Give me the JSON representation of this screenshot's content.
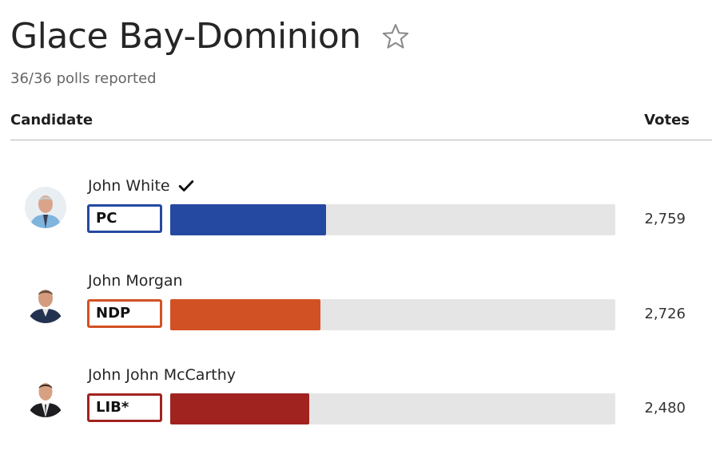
{
  "riding": {
    "title": "Glace Bay-Dominion",
    "polls_reported": "36/36 polls reported"
  },
  "table": {
    "candidate_header": "Candidate",
    "votes_header": "Votes"
  },
  "candidates": [
    {
      "name": "John White",
      "elected": true,
      "party": "PC",
      "votes": "2,759",
      "bar_fraction": 0.35,
      "color": "#2548a1"
    },
    {
      "name": "John Morgan",
      "elected": false,
      "party": "NDP",
      "votes": "2,726",
      "bar_fraction": 0.338,
      "color": "#d25124"
    },
    {
      "name": "John John McCarthy",
      "elected": false,
      "party": "LIB*",
      "votes": "2,480",
      "bar_fraction": 0.312,
      "color": "#a1231f"
    }
  ],
  "icons": {
    "favorite": "star-outline-icon",
    "elected": "checkmark-icon"
  }
}
